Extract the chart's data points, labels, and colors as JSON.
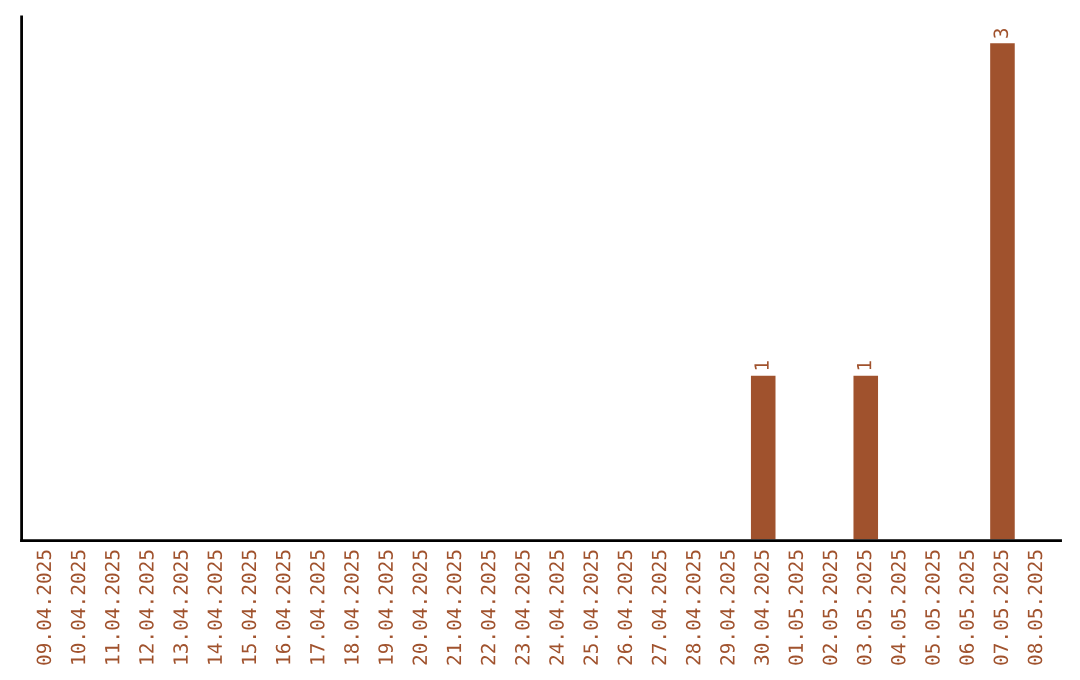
{
  "chart_data": {
    "type": "bar",
    "categories": [
      "09.04.2025",
      "10.04.2025",
      "11.04.2025",
      "12.04.2025",
      "13.04.2025",
      "14.04.2025",
      "15.04.2025",
      "16.04.2025",
      "17.04.2025",
      "18.04.2025",
      "19.04.2025",
      "20.04.2025",
      "21.04.2025",
      "22.04.2025",
      "23.04.2025",
      "24.04.2025",
      "25.04.2025",
      "26.04.2025",
      "27.04.2025",
      "28.04.2025",
      "29.04.2025",
      "30.04.2025",
      "01.05.2025",
      "02.05.2025",
      "03.05.2025",
      "04.05.2025",
      "05.05.2025",
      "06.05.2025",
      "07.05.2025",
      "08.05.2025"
    ],
    "values": [
      null,
      null,
      null,
      null,
      null,
      null,
      null,
      null,
      null,
      null,
      null,
      null,
      null,
      null,
      null,
      null,
      null,
      null,
      null,
      null,
      null,
      1,
      null,
      null,
      1,
      null,
      null,
      null,
      3,
      null
    ],
    "value_labels": [
      null,
      null,
      null,
      null,
      null,
      null,
      null,
      null,
      null,
      null,
      null,
      null,
      null,
      null,
      null,
      null,
      null,
      null,
      null,
      null,
      null,
      "1",
      null,
      null,
      "1",
      null,
      null,
      null,
      "3",
      null
    ],
    "color": "#a0522d",
    "grid": false,
    "legend": false
  }
}
